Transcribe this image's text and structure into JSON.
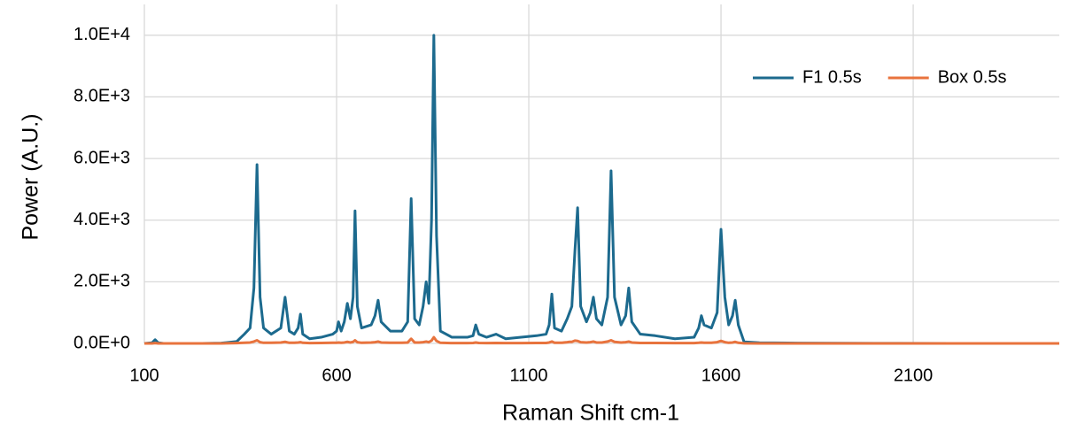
{
  "chart_data": {
    "type": "line",
    "x_label": "Raman Shift cm-1",
    "y_label": "Power (A.U.)",
    "x": [
      100,
      120,
      128,
      136,
      150,
      200,
      250,
      300,
      340,
      360,
      375,
      385,
      393,
      401,
      410,
      430,
      455,
      466,
      477,
      490,
      500,
      506,
      512,
      530,
      560,
      590,
      600,
      605,
      612,
      620,
      628,
      636,
      643,
      648,
      654,
      665,
      690,
      700,
      708,
      716,
      740,
      770,
      785,
      794,
      803,
      815,
      825,
      833,
      840,
      847,
      853,
      860,
      870,
      900,
      940,
      955,
      962,
      970,
      990,
      1015,
      1040,
      1080,
      1120,
      1145,
      1153,
      1160,
      1167,
      1185,
      1200,
      1206,
      1212,
      1220,
      1227,
      1235,
      1250,
      1260,
      1268,
      1276,
      1290,
      1305,
      1314,
      1323,
      1340,
      1352,
      1360,
      1368,
      1390,
      1429,
      1480,
      1530,
      1542,
      1549,
      1556,
      1575,
      1590,
      1600,
      1610,
      1620,
      1630,
      1637,
      1645,
      1660,
      1700,
      1800,
      2000,
      2200,
      2480
    ],
    "series": [
      {
        "name": "F1 0.5s",
        "color": "#1c6a8e",
        "values": [
          0,
          20,
          120,
          20,
          0,
          0,
          0,
          10,
          60,
          300,
          500,
          1800,
          5800,
          1500,
          500,
          300,
          500,
          1500,
          400,
          300,
          500,
          950,
          300,
          150,
          200,
          300,
          400,
          700,
          400,
          700,
          1300,
          800,
          1500,
          4300,
          1200,
          500,
          600,
          900,
          1400,
          700,
          400,
          400,
          700,
          4700,
          800,
          600,
          1200,
          2000,
          1300,
          4000,
          10000,
          3500,
          400,
          200,
          200,
          250,
          600,
          300,
          200,
          300,
          150,
          200,
          250,
          300,
          600,
          1600,
          500,
          400,
          800,
          1000,
          1200,
          3000,
          4400,
          1200,
          700,
          1000,
          1500,
          800,
          600,
          1500,
          5600,
          1500,
          600,
          900,
          1800,
          700,
          300,
          250,
          150,
          200,
          500,
          900,
          600,
          500,
          1000,
          3700,
          1500,
          600,
          900,
          1400,
          600,
          50,
          20,
          10,
          5,
          0,
          0
        ]
      },
      {
        "name": "Box 0.5s",
        "color": "#e8733d",
        "values": [
          0,
          0,
          10,
          0,
          0,
          0,
          0,
          0,
          10,
          20,
          30,
          60,
          100,
          40,
          20,
          20,
          30,
          50,
          20,
          20,
          30,
          40,
          20,
          10,
          15,
          20,
          20,
          30,
          20,
          30,
          50,
          30,
          50,
          100,
          40,
          20,
          30,
          40,
          60,
          30,
          20,
          20,
          30,
          150,
          30,
          30,
          40,
          60,
          40,
          90,
          200,
          80,
          20,
          10,
          10,
          15,
          30,
          15,
          10,
          15,
          10,
          10,
          15,
          15,
          30,
          60,
          20,
          20,
          40,
          50,
          50,
          90,
          80,
          40,
          30,
          40,
          60,
          30,
          30,
          60,
          100,
          50,
          30,
          40,
          60,
          30,
          15,
          15,
          10,
          10,
          20,
          30,
          20,
          20,
          40,
          80,
          40,
          20,
          30,
          50,
          20,
          5,
          0,
          0,
          0,
          0,
          0
        ]
      }
    ],
    "xlim": [
      100,
      2480
    ],
    "xticks": [
      100,
      600,
      1100,
      1600,
      2100
    ],
    "ylim": [
      0,
      11000
    ],
    "yticks": [
      {
        "value": 0,
        "label": "0.0E+0"
      },
      {
        "value": 2000,
        "label": "2.0E+3"
      },
      {
        "value": 4000,
        "label": "4.0E+3"
      },
      {
        "value": 6000,
        "label": "6.0E+3"
      },
      {
        "value": 8000,
        "label": "8.0E+3"
      },
      {
        "value": 10000,
        "label": "1.0E+4"
      }
    ],
    "grid": true,
    "legend": "top-right"
  }
}
